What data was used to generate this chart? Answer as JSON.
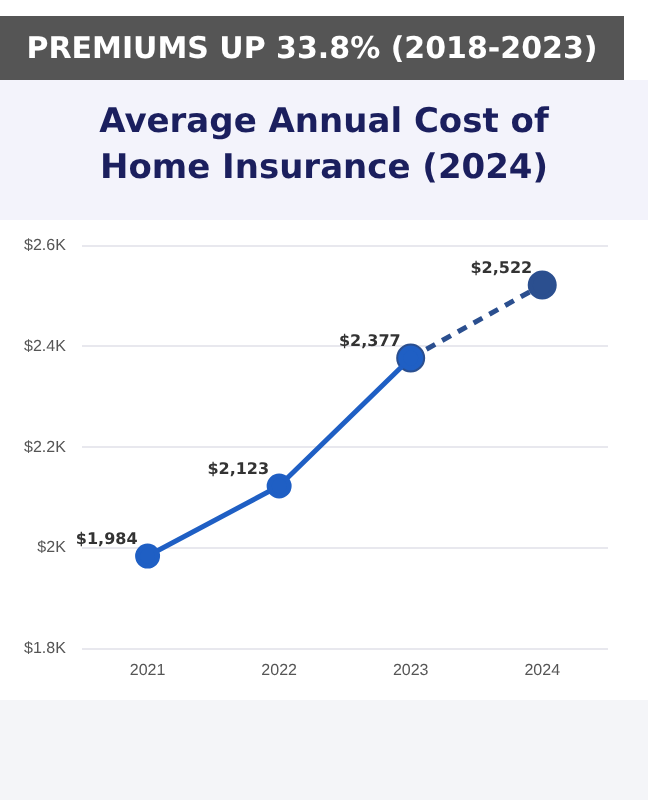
{
  "chart_data": {
    "type": "line",
    "subtitle": "PREMIUMS UP 33.8% (2018-2023)",
    "title": "Average Annual Cost of Home Insurance (2024)",
    "categories": [
      "2021",
      "2022",
      "2023",
      "2024"
    ],
    "series": [
      {
        "color": "#1f5fc4",
        "line_style": "solid",
        "values": [
          1984,
          2123,
          2377,
          null
        ],
        "value_labels": [
          "$1,984",
          "$2,123",
          "$2,377",
          null
        ]
      },
      {
        "color": "#2b4f8f",
        "line_style": "dashed",
        "values": [
          null,
          null,
          2377,
          2522
        ],
        "value_labels": [
          null,
          null,
          null,
          "$2,522"
        ]
      }
    ],
    "ylim": [
      1800,
      2600
    ],
    "yticks": [
      {
        "value": 1800,
        "label": "$1.8K"
      },
      {
        "value": 2000,
        "label": "$2K"
      },
      {
        "value": 2200,
        "label": "$2.2K"
      },
      {
        "value": 2400,
        "label": "$2.4K"
      },
      {
        "value": 2600,
        "label": "$2.6K"
      }
    ],
    "grid": "y",
    "marker": "circle",
    "legend": false
  }
}
